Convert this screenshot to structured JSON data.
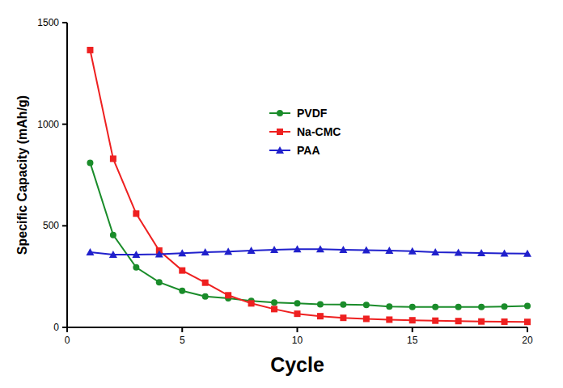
{
  "chart_data": {
    "type": "line",
    "x_label": "Cycle",
    "y_label": "Specific Capacity (mAh/g)",
    "x": [
      1,
      2,
      3,
      4,
      5,
      6,
      7,
      8,
      9,
      10,
      11,
      12,
      13,
      14,
      15,
      16,
      17,
      18,
      19,
      20
    ],
    "series": [
      {
        "name": "PVDF",
        "color": "#1a8c2a",
        "marker": "circle",
        "line_style": "solid",
        "values": [
          810,
          455,
          295,
          222,
          180,
          152,
          143,
          130,
          122,
          118,
          113,
          112,
          110,
          102,
          100,
          100,
          100,
          100,
          102,
          105
        ]
      },
      {
        "name": "Na-CMC",
        "color": "#ee2020",
        "marker": "square",
        "line_style": "solid",
        "values": [
          1365,
          830,
          560,
          378,
          280,
          220,
          158,
          118,
          90,
          67,
          55,
          47,
          42,
          38,
          35,
          33,
          31,
          29,
          28,
          27
        ]
      },
      {
        "name": "PAA",
        "color": "#2020cc",
        "marker": "triangle",
        "line_style": "solid",
        "values": [
          370,
          358,
          358,
          360,
          365,
          370,
          373,
          378,
          382,
          385,
          385,
          382,
          380,
          378,
          375,
          370,
          368,
          366,
          364,
          363
        ]
      }
    ],
    "xlim": [
      0,
      20
    ],
    "xticks": [
      0,
      5,
      10,
      15,
      20
    ],
    "ylim": [
      0,
      1500
    ],
    "yticks": [
      0,
      500,
      1000,
      1500
    ],
    "grid": false,
    "legend": "upper center"
  }
}
